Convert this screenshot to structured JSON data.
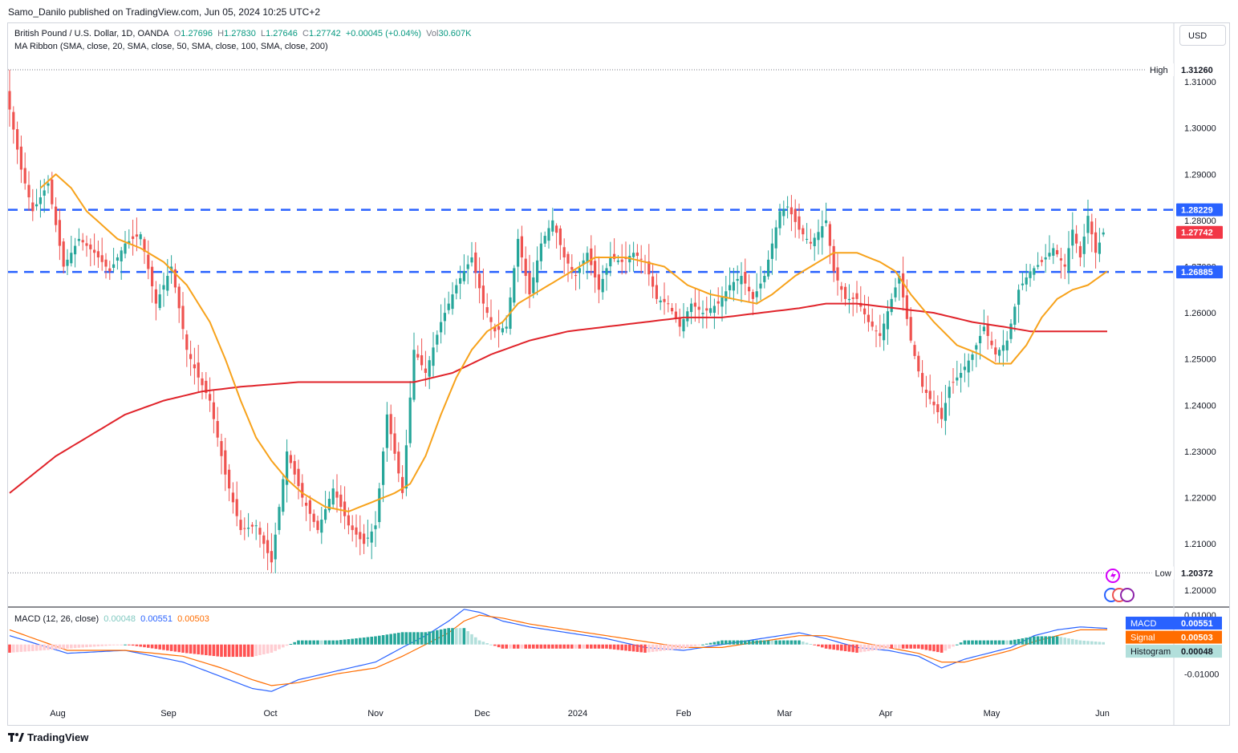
{
  "publisher": "Samo_Danilo published on TradingView.com, Jun 05, 2024 10:25 UTC+2",
  "currency_button": "USD",
  "symbol": {
    "name": "British Pound / U.S. Dollar, 1D, OANDA",
    "o_label": "O",
    "o": "1.27696",
    "h_label": "H",
    "h": "1.27830",
    "l_label": "L",
    "l": "1.27646",
    "c_label": "C",
    "c": "1.27742",
    "change": "+0.00045 (+0.04%)",
    "vol_label": "Vol",
    "vol": "30.607K"
  },
  "ma_ribbon_label": "MA Ribbon (SMA, close, 20, SMA, close, 50, SMA, close, 100, SMA, close, 200)",
  "macd_legend": {
    "label": "MACD (12, 26, close)",
    "histogram": "0.00048",
    "macd": "0.00551",
    "signal": "0.00503"
  },
  "footer": {
    "brand": "TradingView"
  },
  "colors": {
    "up": "#26a69a",
    "down": "#ef5350",
    "ma20": "#f7a21b",
    "ma200": "#e0232a",
    "level": "#2962ff",
    "macd": "#2962ff",
    "signal": "#ff6d00"
  },
  "chart_data": {
    "type": "candlestick",
    "y_ticks": [
      "1.31000",
      "1.30000",
      "1.29000",
      "1.28000",
      "1.27000",
      "1.26000",
      "1.25000",
      "1.24000",
      "1.23000",
      "1.22000",
      "1.21000",
      "1.20000"
    ],
    "y_range": [
      1.1965,
      1.3225
    ],
    "x_ticks": [
      "Aug",
      "Sep",
      "Oct",
      "Nov",
      "Dec",
      "2024",
      "Feb",
      "Mar",
      "Apr",
      "May",
      "Jun"
    ],
    "price_labels": {
      "high": {
        "label": "High",
        "value": "1.31260"
      },
      "low": {
        "label": "Low",
        "value": "1.20372"
      },
      "resistance": {
        "value": "1.28229"
      },
      "last": {
        "value": "1.27742"
      },
      "support": {
        "value": "1.26885"
      }
    },
    "horizontal_levels": [
      1.28229,
      1.26885
    ],
    "close_anchors": [
      [
        0,
        1.304
      ],
      [
        3,
        1.291
      ],
      [
        6,
        1.282
      ],
      [
        10,
        1.288
      ],
      [
        14,
        1.27
      ],
      [
        18,
        1.276
      ],
      [
        22,
        1.273
      ],
      [
        26,
        1.269
      ],
      [
        30,
        1.275
      ],
      [
        34,
        1.277
      ],
      [
        38,
        1.262
      ],
      [
        42,
        1.27
      ],
      [
        46,
        1.252
      ],
      [
        49,
        1.246
      ],
      [
        52,
        1.241
      ],
      [
        56,
        1.225
      ],
      [
        60,
        1.213
      ],
      [
        64,
        1.214
      ],
      [
        68,
        1.206
      ],
      [
        72,
        1.23
      ],
      [
        76,
        1.22
      ],
      [
        80,
        1.213
      ],
      [
        84,
        1.222
      ],
      [
        88,
        1.214
      ],
      [
        92,
        1.21
      ],
      [
        95,
        1.214
      ],
      [
        98,
        1.238
      ],
      [
        102,
        1.221
      ],
      [
        105,
        1.252
      ],
      [
        108,
        1.247
      ],
      [
        112,
        1.258
      ],
      [
        116,
        1.266
      ],
      [
        120,
        1.272
      ],
      [
        123,
        1.262
      ],
      [
        126,
        1.256
      ],
      [
        129,
        1.257
      ],
      [
        132,
        1.276
      ],
      [
        135,
        1.264
      ],
      [
        138,
        1.275
      ],
      [
        141,
        1.28
      ],
      [
        144,
        1.272
      ],
      [
        147,
        1.268
      ],
      [
        150,
        1.273
      ],
      [
        153,
        1.265
      ],
      [
        156,
        1.272
      ],
      [
        159,
        1.271
      ],
      [
        162,
        1.273
      ],
      [
        165,
        1.271
      ],
      [
        168,
        1.263
      ],
      [
        171,
        1.262
      ],
      [
        174,
        1.257
      ],
      [
        177,
        1.262
      ],
      [
        180,
        1.26
      ],
      [
        184,
        1.262
      ],
      [
        187,
        1.266
      ],
      [
        190,
        1.268
      ],
      [
        193,
        1.263
      ],
      [
        196,
        1.268
      ],
      [
        200,
        1.282
      ],
      [
        202,
        1.283
      ],
      [
        205,
        1.278
      ],
      [
        208,
        1.275
      ],
      [
        212,
        1.28
      ],
      [
        214,
        1.269
      ],
      [
        217,
        1.263
      ],
      [
        220,
        1.263
      ],
      [
        223,
        1.258
      ],
      [
        226,
        1.255
      ],
      [
        229,
        1.263
      ],
      [
        231,
        1.268
      ],
      [
        234,
        1.254
      ],
      [
        237,
        1.244
      ],
      [
        240,
        1.24
      ],
      [
        242,
        1.237
      ],
      [
        244,
        1.244
      ],
      [
        247,
        1.247
      ],
      [
        250,
        1.251
      ],
      [
        253,
        1.257
      ],
      [
        256,
        1.251
      ],
      [
        259,
        1.254
      ],
      [
        262,
        1.265
      ],
      [
        265,
        1.269
      ],
      [
        268,
        1.271
      ],
      [
        271,
        1.274
      ],
      [
        274,
        1.27
      ],
      [
        276,
        1.278
      ],
      [
        278,
        1.272
      ],
      [
        280,
        1.281
      ],
      [
        282,
        1.273
      ],
      [
        284,
        1.2774
      ]
    ],
    "ma20_anchors": [
      [
        8,
        1.287
      ],
      [
        12,
        1.29
      ],
      [
        16,
        1.287
      ],
      [
        20,
        1.282
      ],
      [
        24,
        1.279
      ],
      [
        28,
        1.276
      ],
      [
        34,
        1.274
      ],
      [
        40,
        1.271
      ],
      [
        46,
        1.266
      ],
      [
        52,
        1.258
      ],
      [
        56,
        1.25
      ],
      [
        60,
        1.241
      ],
      [
        64,
        1.233
      ],
      [
        68,
        1.228
      ],
      [
        72,
        1.224
      ],
      [
        76,
        1.221
      ],
      [
        82,
        1.218
      ],
      [
        88,
        1.217
      ],
      [
        94,
        1.219
      ],
      [
        100,
        1.221
      ],
      [
        104,
        1.223
      ],
      [
        108,
        1.229
      ],
      [
        112,
        1.238
      ],
      [
        116,
        1.246
      ],
      [
        120,
        1.252
      ],
      [
        124,
        1.256
      ],
      [
        128,
        1.258
      ],
      [
        132,
        1.262
      ],
      [
        138,
        1.265
      ],
      [
        146,
        1.269
      ],
      [
        152,
        1.272
      ],
      [
        160,
        1.272
      ],
      [
        170,
        1.27
      ],
      [
        176,
        1.266
      ],
      [
        182,
        1.264
      ],
      [
        188,
        1.263
      ],
      [
        194,
        1.262
      ],
      [
        198,
        1.264
      ],
      [
        204,
        1.268
      ],
      [
        210,
        1.271
      ],
      [
        214,
        1.273
      ],
      [
        220,
        1.273
      ],
      [
        226,
        1.271
      ],
      [
        230,
        1.269
      ],
      [
        234,
        1.264
      ],
      [
        240,
        1.258
      ],
      [
        246,
        1.253
      ],
      [
        252,
        1.251
      ],
      [
        256,
        1.249
      ],
      [
        260,
        1.249
      ],
      [
        264,
        1.253
      ],
      [
        268,
        1.259
      ],
      [
        272,
        1.263
      ],
      [
        276,
        1.265
      ],
      [
        280,
        1.266
      ],
      [
        285,
        1.269
      ]
    ],
    "ma200_anchors": [
      [
        0,
        1.221
      ],
      [
        6,
        1.225
      ],
      [
        12,
        1.229
      ],
      [
        20,
        1.233
      ],
      [
        30,
        1.238
      ],
      [
        40,
        1.241
      ],
      [
        50,
        1.243
      ],
      [
        60,
        1.244
      ],
      [
        75,
        1.245
      ],
      [
        90,
        1.245
      ],
      [
        105,
        1.245
      ],
      [
        115,
        1.247
      ],
      [
        125,
        1.251
      ],
      [
        135,
        1.254
      ],
      [
        145,
        1.256
      ],
      [
        155,
        1.257
      ],
      [
        165,
        1.258
      ],
      [
        175,
        1.259
      ],
      [
        185,
        1.259
      ],
      [
        195,
        1.26
      ],
      [
        205,
        1.261
      ],
      [
        212,
        1.262
      ],
      [
        220,
        1.262
      ],
      [
        230,
        1.261
      ],
      [
        240,
        1.26
      ],
      [
        250,
        1.258
      ],
      [
        258,
        1.257
      ],
      [
        265,
        1.256
      ],
      [
        275,
        1.256
      ],
      [
        285,
        1.256
      ]
    ],
    "macd_panel": {
      "y_ticks": [
        "0.01000",
        "-0.01000"
      ],
      "labels": {
        "macd": {
          "label": "MACD",
          "value": "0.00551"
        },
        "signal": {
          "label": "Signal",
          "value": "0.00503"
        },
        "histogram": {
          "label": "Histogram",
          "value": "0.00048"
        }
      },
      "macd_anchors": [
        [
          0,
          0.003
        ],
        [
          15,
          -0.003
        ],
        [
          30,
          -0.002
        ],
        [
          45,
          -0.006
        ],
        [
          55,
          -0.011
        ],
        [
          63,
          -0.015
        ],
        [
          68,
          -0.016
        ],
        [
          75,
          -0.012
        ],
        [
          85,
          -0.009
        ],
        [
          95,
          -0.006
        ],
        [
          102,
          -0.001
        ],
        [
          108,
          0.003
        ],
        [
          114,
          0.008
        ],
        [
          118,
          0.012
        ],
        [
          122,
          0.011
        ],
        [
          128,
          0.008
        ],
        [
          135,
          0.006
        ],
        [
          145,
          0.004
        ],
        [
          155,
          0.002
        ],
        [
          165,
          -0.001
        ],
        [
          175,
          -0.002
        ],
        [
          185,
          0.0
        ],
        [
          195,
          0.002
        ],
        [
          205,
          0.004
        ],
        [
          212,
          0.002
        ],
        [
          220,
          -0.001
        ],
        [
          228,
          -0.002
        ],
        [
          236,
          -0.004
        ],
        [
          242,
          -0.008
        ],
        [
          248,
          -0.005
        ],
        [
          254,
          -0.003
        ],
        [
          260,
          -0.001
        ],
        [
          266,
          0.003
        ],
        [
          272,
          0.005
        ],
        [
          278,
          0.006
        ],
        [
          285,
          0.0055
        ]
      ],
      "signal_anchors": [
        [
          0,
          0.005
        ],
        [
          15,
          -0.002
        ],
        [
          30,
          -0.002
        ],
        [
          45,
          -0.004
        ],
        [
          55,
          -0.008
        ],
        [
          63,
          -0.012
        ],
        [
          68,
          -0.014
        ],
        [
          75,
          -0.013
        ],
        [
          85,
          -0.01
        ],
        [
          95,
          -0.008
        ],
        [
          102,
          -0.004
        ],
        [
          108,
          0.0
        ],
        [
          114,
          0.004
        ],
        [
          118,
          0.008
        ],
        [
          122,
          0.01
        ],
        [
          128,
          0.009
        ],
        [
          135,
          0.007
        ],
        [
          145,
          0.005
        ],
        [
          155,
          0.003
        ],
        [
          165,
          0.001
        ],
        [
          175,
          -0.001
        ],
        [
          185,
          -0.001
        ],
        [
          195,
          0.001
        ],
        [
          205,
          0.003
        ],
        [
          212,
          0.003
        ],
        [
          220,
          0.001
        ],
        [
          228,
          -0.001
        ],
        [
          236,
          -0.003
        ],
        [
          242,
          -0.006
        ],
        [
          248,
          -0.006
        ],
        [
          254,
          -0.004
        ],
        [
          260,
          -0.002
        ],
        [
          266,
          0.001
        ],
        [
          272,
          0.003
        ],
        [
          278,
          0.005
        ],
        [
          285,
          0.005
        ]
      ]
    }
  }
}
